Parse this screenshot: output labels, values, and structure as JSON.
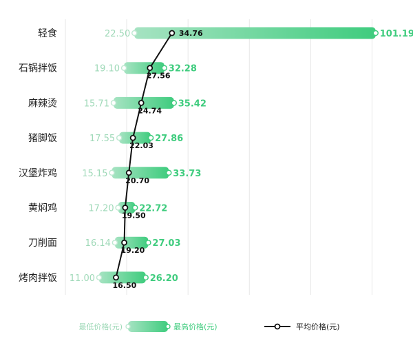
{
  "chart_data": {
    "type": "range-bar-with-line",
    "categories": [
      "轻食",
      "石锅拌饭",
      "麻辣烫",
      "猪脚饭",
      "汉堡炸鸡",
      "黄焖鸡",
      "刀削面",
      "烤肉拌饭"
    ],
    "series": [
      {
        "name": "最低价格(元)",
        "values": [
          22.5,
          19.1,
          15.71,
          17.55,
          15.15,
          17.2,
          16.14,
          11.0
        ]
      },
      {
        "name": "最高价格(元)",
        "values": [
          101.19,
          32.28,
          35.42,
          27.86,
          33.73,
          22.72,
          27.03,
          26.2
        ]
      },
      {
        "name": "平均价格(元)",
        "values": [
          34.76,
          27.56,
          24.74,
          22.03,
          20.7,
          19.5,
          19.2,
          16.5
        ]
      }
    ],
    "xlim": [
      0,
      110
    ],
    "grid": "vertical",
    "legend_position": "bottom",
    "colors": {
      "bar_start": "#9fe0bd",
      "bar_end": "#3fcc7e",
      "min_label": "#9fd9b8",
      "max_label": "#3fcc7e",
      "avg_line": "#111111",
      "grid": "#e6e6e6"
    }
  }
}
